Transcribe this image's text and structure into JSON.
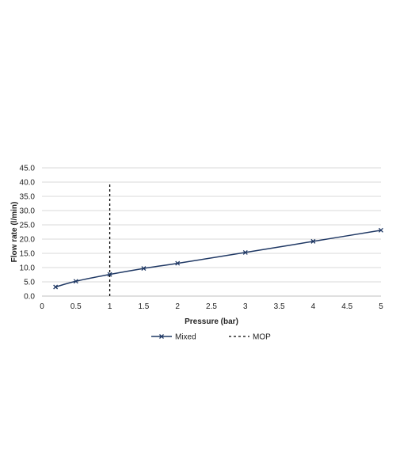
{
  "chart_data": {
    "type": "line",
    "xlabel": "Pressure (bar)",
    "ylabel": "Flow rate (l/min)",
    "xlim": [
      0,
      5
    ],
    "ylim": [
      0,
      45
    ],
    "x_ticks": [
      "0",
      "0.5",
      "1",
      "1.5",
      "2",
      "2.5",
      "3",
      "3.5",
      "4",
      "4.5",
      "5"
    ],
    "y_ticks": [
      "0.0",
      "5.0",
      "10.0",
      "15.0",
      "20.0",
      "25.0",
      "30.0",
      "35.0",
      "40.0",
      "45.0"
    ],
    "grid": "horizontal",
    "legend_position": "bottom",
    "series": [
      {
        "name": "Mixed",
        "marker": "x",
        "color": "#1f3864",
        "x": [
          0.2,
          0.5,
          1,
          1.5,
          2,
          3,
          4,
          5
        ],
        "y": [
          3.2,
          5.2,
          7.6,
          9.7,
          11.5,
          15.3,
          19.2,
          23.1
        ]
      }
    ],
    "reference_lines": [
      {
        "name": "MOP",
        "orientation": "vertical",
        "x": 1,
        "y_range": [
          0,
          40
        ],
        "style": "dashed",
        "color": "#000000"
      }
    ]
  }
}
